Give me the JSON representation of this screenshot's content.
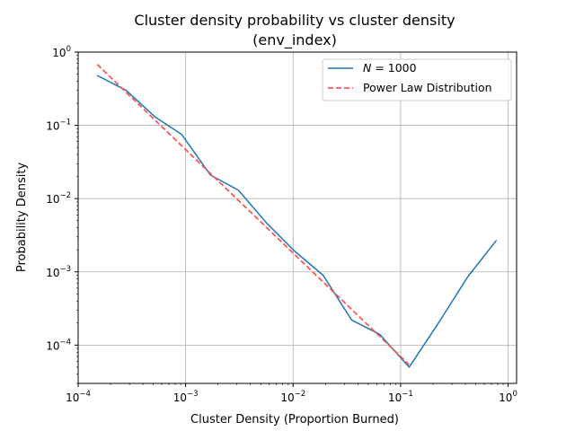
{
  "chart_data": {
    "type": "line",
    "title_line1": "Cluster density probability vs cluster density",
    "title_line2": "(env_index)",
    "xlabel": "Cluster Density (Proportion Burned)",
    "ylabel": "Probability Density",
    "xscale": "log",
    "yscale": "log",
    "xlim": [
      0.0001,
      1.2
    ],
    "ylim": [
      3e-05,
      1.0
    ],
    "grid": true,
    "legend_position": "top-right",
    "x_ticks": [
      {
        "base": "10",
        "exp": "−4",
        "value": 0.0001
      },
      {
        "base": "10",
        "exp": "−3",
        "value": 0.001
      },
      {
        "base": "10",
        "exp": "−2",
        "value": 0.01
      },
      {
        "base": "10",
        "exp": "−1",
        "value": 0.1
      },
      {
        "base": "10",
        "exp": "0",
        "value": 1
      }
    ],
    "y_ticks": [
      {
        "base": "10",
        "exp": "−4",
        "value": 0.0001
      },
      {
        "base": "10",
        "exp": "−3",
        "value": 0.001
      },
      {
        "base": "10",
        "exp": "−2",
        "value": 0.01
      },
      {
        "base": "10",
        "exp": "−1",
        "value": 0.1
      },
      {
        "base": "10",
        "exp": "0",
        "value": 1
      }
    ],
    "series": [
      {
        "name_italic": "N",
        "name_rest": " =  1000",
        "style": "solid",
        "color": "#1f77b4",
        "x": [
          0.00015,
          0.00028,
          0.00052,
          0.00092,
          0.0017,
          0.0031,
          0.0057,
          0.0104,
          0.019,
          0.035,
          0.064,
          0.12,
          0.22,
          0.42,
          0.78
        ],
        "y": [
          0.48,
          0.3,
          0.13,
          0.075,
          0.021,
          0.013,
          0.0046,
          0.0019,
          0.0009,
          0.00022,
          0.00014,
          5e-05,
          0.00019,
          0.00085,
          0.0027
        ]
      },
      {
        "name": "Power Law Distribution",
        "style": "dashed",
        "color": "#ff5555",
        "x": [
          0.00015,
          0.12
        ],
        "y": [
          0.68,
          5.4e-05
        ]
      }
    ]
  }
}
